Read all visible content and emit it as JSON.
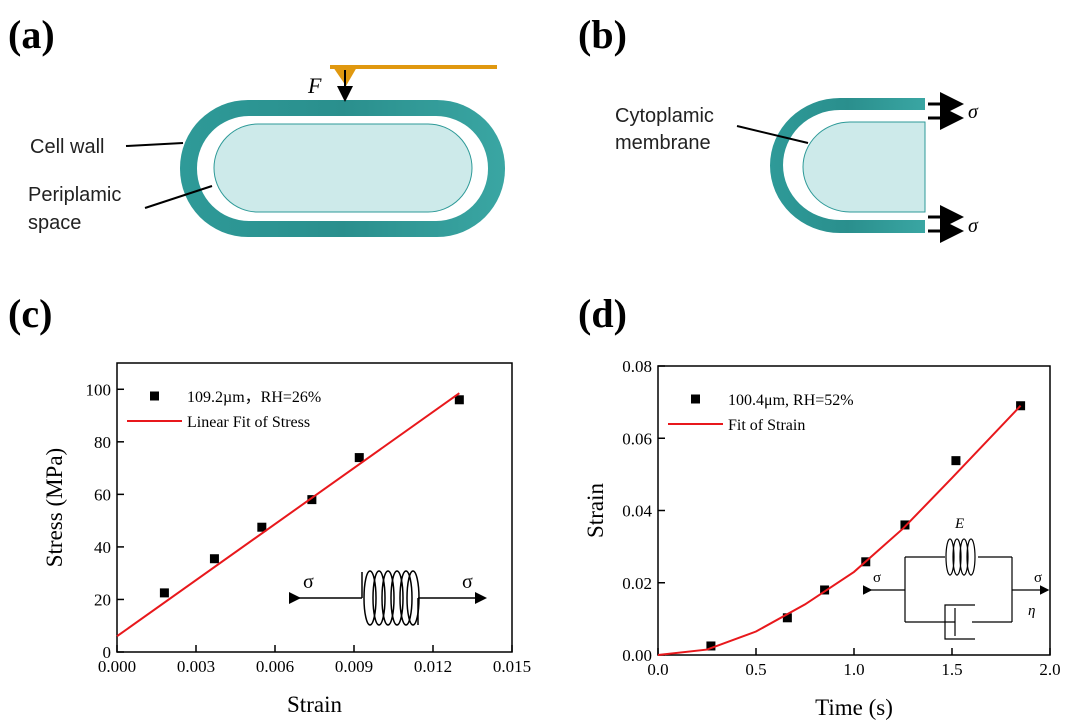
{
  "panels": {
    "a": "(a)",
    "b": "(b)",
    "c": "(c)",
    "d": "(d)"
  },
  "diagram_a": {
    "force": "F",
    "cell_wall": "Cell wall",
    "periplasm_line1": "Periplamic",
    "periplasm_line2": "space"
  },
  "diagram_b": {
    "membrane_line1": "Cytoplamic",
    "membrane_line2": "membrane",
    "stress_top": "σ",
    "stress_bottom": "σ"
  },
  "inset_c": {
    "left": "σ",
    "right": "σ"
  },
  "inset_d": {
    "spring": "E",
    "dashpot": "η",
    "left": "σ",
    "right": "σ"
  },
  "chart_data": [
    {
      "type": "scatter",
      "x_label": "Strain",
      "y_label": "Stress (MPa)",
      "xlim": [
        0,
        0.015
      ],
      "ylim": [
        0,
        110
      ],
      "xticks": [
        {
          "value": 0,
          "label": "0.000"
        },
        {
          "value": 0.003,
          "label": "0.003"
        },
        {
          "value": 0.006,
          "label": "0.006"
        },
        {
          "value": 0.009,
          "label": "0.009"
        },
        {
          "value": 0.012,
          "label": "0.012"
        },
        {
          "value": 0.015,
          "label": "0.015"
        }
      ],
      "yticks": [
        0,
        20,
        40,
        60,
        80,
        100
      ],
      "legend": "upper left",
      "series": [
        {
          "name": "109.2µm，RH=26%",
          "style": "marker",
          "color": "#000000",
          "x": [
            0.0018,
            0.0037,
            0.0055,
            0.0074,
            0.0092,
            0.013
          ],
          "values": [
            22.5,
            35.5,
            47.5,
            58,
            74,
            96
          ]
        },
        {
          "name": "Linear Fit of Stress",
          "style": "line",
          "color": "#e8181c",
          "x": [
            0,
            0.013
          ],
          "values": [
            6,
            98.5
          ]
        }
      ]
    },
    {
      "type": "scatter",
      "x_label": "Time (s)",
      "y_label": "Strain",
      "xlim": [
        0,
        2
      ],
      "ylim": [
        0,
        0.08
      ],
      "xticks": [
        {
          "value": 0,
          "label": "0.0"
        },
        {
          "value": 0.5,
          "label": "0.5"
        },
        {
          "value": 1,
          "label": "1.0"
        },
        {
          "value": 1.5,
          "label": "1.5"
        },
        {
          "value": 2,
          "label": "2.0"
        }
      ],
      "yticks": [
        {
          "value": 0,
          "label": "0.00"
        },
        {
          "value": 0.02,
          "label": "0.02"
        },
        {
          "value": 0.04,
          "label": "0.04"
        },
        {
          "value": 0.06,
          "label": "0.06"
        },
        {
          "value": 0.08,
          "label": "0.08"
        }
      ],
      "legend": "upper left",
      "series": [
        {
          "name": "100.4μm, RH=52%",
          "style": "marker",
          "color": "#000000",
          "x": [
            0.27,
            0.66,
            0.85,
            1.06,
            1.26,
            1.52,
            1.85
          ],
          "values": [
            0.0025,
            0.0103,
            0.018,
            0.0258,
            0.036,
            0.0538,
            0.069
          ]
        },
        {
          "name": "Fit of Strain",
          "style": "line",
          "color": "#e8181c",
          "x": [
            0,
            0.25,
            0.5,
            0.75,
            1,
            1.25,
            1.5,
            1.85
          ],
          "values": [
            0,
            0.0015,
            0.0065,
            0.014,
            0.023,
            0.035,
            0.049,
            0.069
          ]
        }
      ]
    }
  ]
}
